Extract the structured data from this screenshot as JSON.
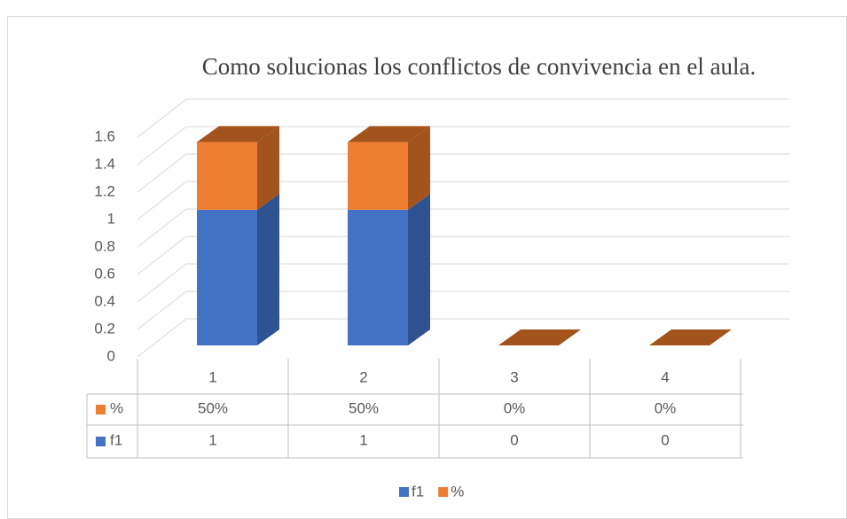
{
  "chart_data": {
    "type": "bar3d_stacked",
    "title": "Como solucionas los conflictos de convivencia en el aula.",
    "categories": [
      "1",
      "2",
      "3",
      "4"
    ],
    "series": [
      {
        "name": "f1",
        "color": "#4472c4",
        "side_color": "#2f5290",
        "values": [
          1,
          1,
          0,
          0
        ]
      },
      {
        "name": "%",
        "color": "#ed7d31",
        "side_color": "#a3531c",
        "values": [
          0.5,
          0.5,
          0,
          0
        ],
        "value_labels": [
          "50%",
          "50%",
          "0%",
          "0%"
        ]
      }
    ],
    "ylim": [
      0,
      1.6
    ],
    "yticks": [
      0,
      0.2,
      0.4,
      0.6,
      0.8,
      1,
      1.2,
      1.4,
      1.6
    ],
    "grid": true,
    "data_table": true,
    "legend": "bottom"
  }
}
